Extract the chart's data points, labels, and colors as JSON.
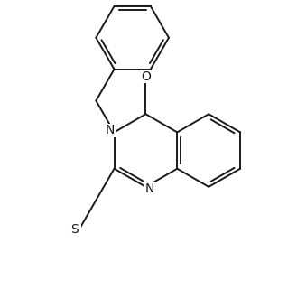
{
  "bg_color": "#ffffff",
  "line_color": "#1a1a1a",
  "line_width": 1.4,
  "label_fontsize": 10,
  "figsize": [
    3.29,
    3.31
  ],
  "dpi": 100,
  "xlim": [
    -0.5,
    4.5
  ],
  "ylim": [
    -4.2,
    3.8
  ]
}
